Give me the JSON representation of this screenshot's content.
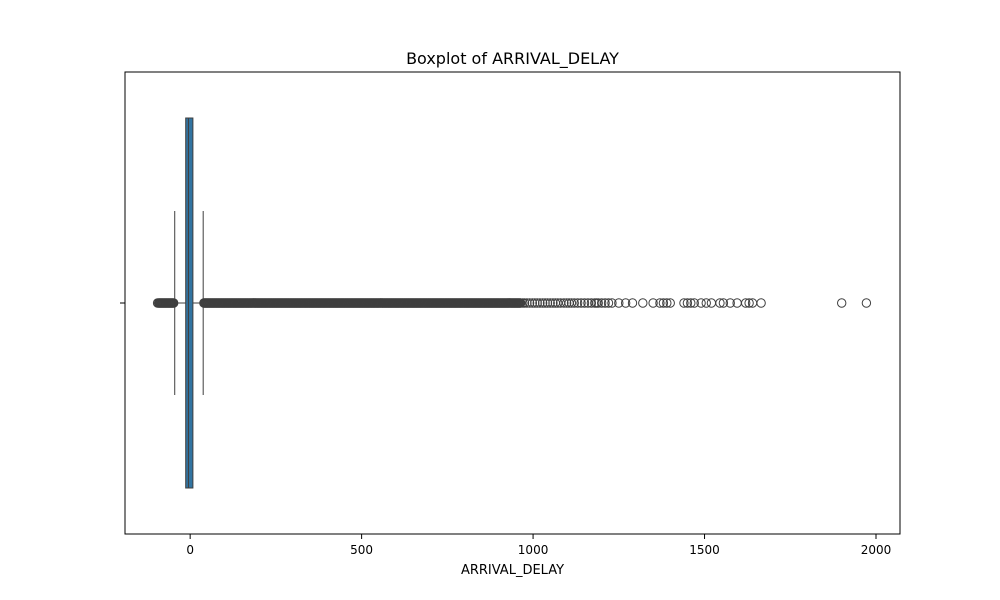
{
  "chart_data": {
    "type": "boxplot",
    "title": "Boxplot of ARRIVAL_DELAY",
    "xlabel": "ARRIVAL_DELAY",
    "ylabel": "",
    "orientation": "horizontal",
    "xlim": [
      -190,
      2070
    ],
    "xticks": [
      0,
      500,
      1000,
      1500,
      2000
    ],
    "xtick_labels": [
      "0",
      "500",
      "1000",
      "1500",
      "2000"
    ],
    "grid": false,
    "box": {
      "whisker_low": -45,
      "q1": -13,
      "median": -5,
      "q3": 8,
      "whisker_high": 38
    },
    "outliers_low": [
      -95,
      -92,
      -90,
      -88,
      -86,
      -84,
      -82,
      -80,
      -78,
      -76,
      -74,
      -72,
      -70,
      -68,
      -66,
      -64,
      -62,
      -60,
      -58,
      -56,
      -54,
      -52,
      -50,
      -48
    ],
    "outliers_high_dense_range": [
      40,
      965
    ],
    "outliers_high": [
      970,
      975,
      982,
      990,
      998,
      1005,
      1012,
      1020,
      1028,
      1035,
      1042,
      1050,
      1058,
      1065,
      1072,
      1080,
      1090,
      1098,
      1105,
      1112,
      1120,
      1130,
      1140,
      1150,
      1160,
      1170,
      1180,
      1185,
      1190,
      1200,
      1210,
      1220,
      1230,
      1250,
      1270,
      1290,
      1320,
      1350,
      1370,
      1380,
      1390,
      1400,
      1440,
      1450,
      1460,
      1470,
      1490,
      1505,
      1520,
      1545,
      1555,
      1575,
      1595,
      1620,
      1630,
      1640,
      1665,
      1900,
      1972
    ],
    "colors": {
      "box_fill": "#3274a1",
      "edge": "#3f3f3f",
      "marker_edge": "#3f3f3f"
    }
  }
}
